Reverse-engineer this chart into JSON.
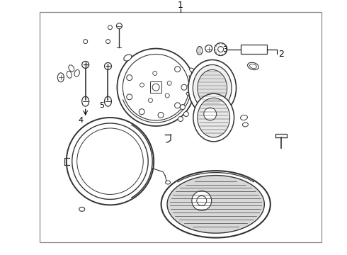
{
  "bg_color": "#ffffff",
  "line_color": "#333333",
  "border_color": "#888888",
  "label_1": "1",
  "label_2": "2",
  "label_3": "3",
  "label_4": "4",
  "label_5": "5",
  "figsize": [
    4.9,
    3.6
  ],
  "dpi": 100
}
